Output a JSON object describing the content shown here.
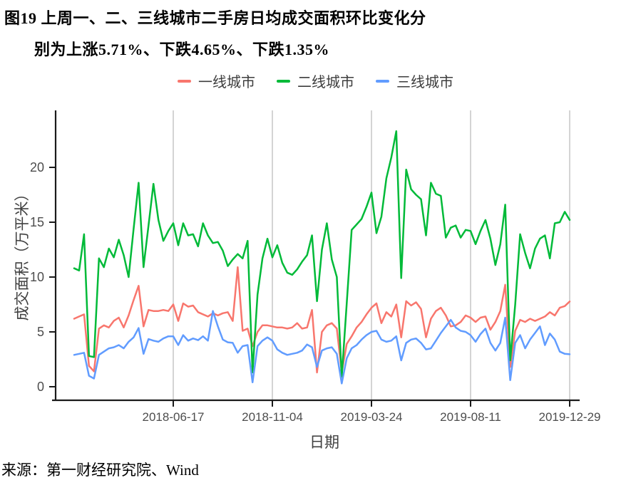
{
  "title": {
    "line1": "图19 上周一、二、三线城市二手房日均成交面积环比变化分",
    "line2": "别为上涨5.71%、下跌4.65%、下跌1.35%"
  },
  "legend": {
    "items": [
      {
        "label": "一线城市",
        "color": "#F8766D"
      },
      {
        "label": "二线城市",
        "color": "#00BA38"
      },
      {
        "label": "三线城市",
        "color": "#619CFF"
      }
    ]
  },
  "axis": {
    "x_label": "日期",
    "y_label": "成交面积（万平米）"
  },
  "source_note": "来源：第一财经研究院、Wind",
  "chart_data": {
    "type": "line",
    "title": "上周一、二、三线城市二手房日均成交面积环比变化",
    "xlabel": "日期",
    "ylabel": "成交面积（万平米）",
    "x_start_date": "2018-01-28",
    "x_step_days": 7,
    "n_points": 101,
    "x_ticks": [
      {
        "index": 20,
        "label": "2018-06-17"
      },
      {
        "index": 40,
        "label": "2018-11-04"
      },
      {
        "index": 60,
        "label": "2019-03-24"
      },
      {
        "index": 80,
        "label": "2019-08-11"
      },
      {
        "index": 100,
        "label": "2019-12-29"
      }
    ],
    "y_ticks": [
      0,
      5,
      10,
      15,
      20
    ],
    "ylim": [
      0,
      24.5
    ],
    "grid": "vertical-only",
    "legend_position": "top",
    "last_week_changes": {
      "一线城市": "+5.71%",
      "二线城市": "-4.65%",
      "三线城市": "-1.35%"
    },
    "series": [
      {
        "name": "一线城市",
        "color": "#F8766D",
        "values": [
          6.2,
          6.4,
          6.6,
          1.9,
          1.4,
          5.3,
          5.6,
          5.4,
          6.0,
          6.3,
          5.4,
          6.5,
          7.9,
          9.2,
          5.5,
          7.0,
          6.9,
          6.9,
          7.0,
          6.9,
          7.5,
          6.0,
          7.6,
          7.3,
          7.4,
          6.8,
          6.6,
          6.4,
          6.7,
          6.5,
          6.7,
          6.8,
          6.0,
          10.9,
          5.1,
          5.3,
          3.7,
          5.0,
          5.6,
          5.6,
          5.5,
          5.4,
          5.4,
          5.3,
          5.4,
          5.8,
          5.3,
          5.4,
          7.0,
          1.3,
          5.0,
          5.6,
          5.8,
          5.3,
          1.3,
          3.9,
          4.6,
          5.4,
          5.9,
          6.6,
          7.2,
          7.6,
          5.8,
          6.8,
          6.4,
          7.5,
          4.5,
          7.8,
          7.4,
          7.7,
          7.1,
          4.5,
          6.2,
          6.9,
          7.2,
          6.5,
          5.5,
          5.6,
          5.9,
          6.5,
          6.3,
          5.9,
          6.3,
          6.4,
          5.2,
          5.9,
          6.9,
          9.3,
          1.8,
          5.1,
          6.1,
          5.9,
          6.2,
          6.0,
          6.2,
          6.4,
          6.8,
          6.5,
          7.2,
          7.35,
          7.77
        ]
      },
      {
        "name": "二线城市",
        "color": "#00BA38",
        "values": [
          10.8,
          10.6,
          13.9,
          2.8,
          2.7,
          11.7,
          10.9,
          12.6,
          11.8,
          13.4,
          12.0,
          10.0,
          14.4,
          18.6,
          10.9,
          14.7,
          18.5,
          15.2,
          13.3,
          14.2,
          14.9,
          12.9,
          14.9,
          13.8,
          13.9,
          12.8,
          14.9,
          13.8,
          13.1,
          13.2,
          12.4,
          11.0,
          11.6,
          12.1,
          11.7,
          13.3,
          1.3,
          8.4,
          11.7,
          13.5,
          11.8,
          12.9,
          11.3,
          10.4,
          10.2,
          10.7,
          11.4,
          12.0,
          13.8,
          7.8,
          12.5,
          14.9,
          11.6,
          10.0,
          0.9,
          7.6,
          14.3,
          14.8,
          15.3,
          16.4,
          17.7,
          14.0,
          15.5,
          19.0,
          20.9,
          23.3,
          9.9,
          19.8,
          18.0,
          17.5,
          17.1,
          13.8,
          18.6,
          17.6,
          17.4,
          13.6,
          14.5,
          14.7,
          13.6,
          14.3,
          14.2,
          13.0,
          14.2,
          15.2,
          13.5,
          11.1,
          13.0,
          16.6,
          2.4,
          7.5,
          13.9,
          12.2,
          10.8,
          12.6,
          13.5,
          13.8,
          11.7,
          14.9,
          15.0,
          15.95,
          15.21
        ]
      },
      {
        "name": "三线城市",
        "color": "#619CFF",
        "values": [
          2.9,
          3.0,
          3.1,
          1.0,
          0.75,
          2.9,
          3.2,
          3.5,
          3.6,
          3.8,
          3.5,
          4.1,
          4.5,
          5.35,
          3.0,
          4.35,
          4.2,
          4.1,
          4.4,
          4.6,
          4.6,
          3.8,
          4.7,
          4.2,
          4.4,
          4.25,
          4.6,
          4.2,
          6.9,
          5.5,
          4.3,
          4.05,
          4.0,
          3.1,
          3.7,
          3.8,
          0.4,
          3.7,
          4.2,
          4.5,
          4.2,
          3.4,
          3.1,
          2.9,
          3.0,
          3.1,
          3.3,
          3.85,
          3.6,
          1.8,
          3.3,
          3.5,
          3.6,
          3.0,
          0.3,
          2.6,
          3.5,
          3.8,
          4.3,
          4.7,
          5.0,
          5.1,
          4.3,
          4.1,
          4.2,
          4.6,
          2.4,
          4.0,
          4.3,
          4.4,
          4.0,
          3.4,
          3.5,
          4.2,
          4.9,
          5.5,
          6.1,
          5.4,
          5.1,
          5.0,
          4.7,
          4.1,
          4.8,
          5.3,
          4.0,
          3.3,
          4.0,
          6.3,
          0.6,
          4.0,
          4.7,
          3.5,
          4.3,
          4.9,
          5.5,
          3.8,
          4.85,
          4.3,
          3.2,
          3.0,
          2.96
        ]
      }
    ]
  }
}
